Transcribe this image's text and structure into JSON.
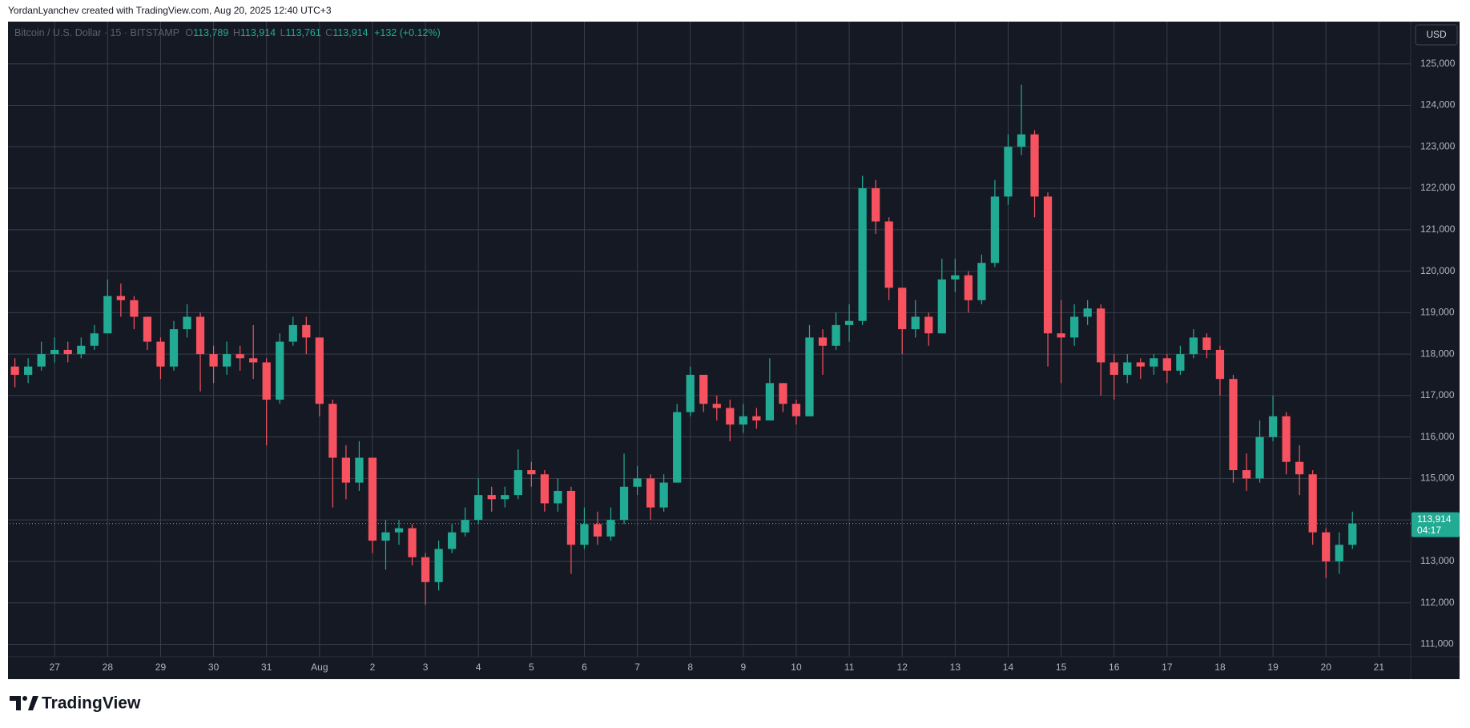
{
  "header": {
    "text": "YordanLyanchev created with TradingView.com, Aug 20, 2025 12:40 UTC+3"
  },
  "chart_data": {
    "type": "candlestick",
    "symbol": "Bitcoin / U.S. Dollar · 15 · BITSTAMP",
    "ohlc_legend": {
      "o_label": "O",
      "o": "113,789",
      "h_label": "H",
      "h": "113,914",
      "l_label": "L",
      "l": "113,761",
      "c_label": "C",
      "c": "113,914",
      "change": "+132 (+0.12%)"
    },
    "currency": "USD",
    "up_color": "#22ab94",
    "down_color": "#f7525f",
    "grid": true,
    "grid_color": "#3a3e4a",
    "x": [
      -0.75,
      -0.5,
      -0.25,
      0,
      0.25,
      0.5,
      0.75,
      1,
      1.25,
      1.5,
      1.75,
      2,
      2.25,
      2.5,
      2.75,
      3,
      3.25,
      3.5,
      3.75,
      4,
      4.25,
      4.5,
      4.75,
      5,
      5.25,
      5.5,
      5.75,
      6,
      6.25,
      6.5,
      6.75,
      7,
      7.25,
      7.5,
      7.75,
      8,
      8.25,
      8.5,
      8.75,
      9,
      9.25,
      9.5,
      9.75,
      10,
      10.25,
      10.5,
      10.75,
      11,
      11.25,
      11.5,
      11.75,
      12,
      12.25,
      12.5,
      12.75,
      13,
      13.25,
      13.5,
      13.75,
      14,
      14.25,
      14.5,
      14.75,
      15,
      15.25,
      15.5,
      15.75,
      16,
      16.25,
      16.5,
      16.75,
      17,
      17.25,
      17.5,
      17.75,
      18,
      18.25,
      18.5,
      18.75,
      19,
      19.25,
      19.5,
      19.75,
      20,
      20.25,
      20.5,
      20.75,
      21,
      21.25,
      21.5,
      21.75,
      22,
      22.25,
      22.5,
      22.75,
      23,
      23.25,
      23.5,
      23.75,
      24,
      24.25,
      24.5
    ],
    "series": [
      {
        "open": [
          117700,
          117500,
          117700,
          118000,
          118100,
          118000,
          118200,
          118500,
          119400,
          119300,
          118900,
          118300,
          117700,
          118600,
          118900,
          118000,
          117700,
          118000,
          117900,
          117800,
          116900,
          118300,
          118700,
          118400,
          116800,
          115500,
          114900,
          115500,
          113500,
          113700,
          113800,
          113100,
          112500,
          113300,
          113700,
          114000,
          114600,
          114500,
          114600,
          115200,
          115100,
          114400,
          114700,
          113400,
          113900,
          113600,
          114000,
          114800,
          115000,
          114300,
          114900,
          116600,
          117500,
          116800,
          116700,
          116300,
          116500,
          116400,
          117300,
          116800,
          116500,
          118400,
          118200,
          118700,
          118800,
          122000,
          121200,
          119600,
          118600,
          118900,
          118500,
          119800,
          119900,
          119300,
          120200,
          121800,
          123000,
          123300,
          121800,
          118500,
          118400,
          118900,
          119100,
          117800,
          117500,
          117800,
          117700,
          117900,
          117600,
          118000,
          118400,
          118100,
          117400,
          115200,
          115000,
          116000,
          116500,
          115400,
          115100,
          113700,
          113000,
          113400
        ],
        "high": [
          117900,
          117900,
          118300,
          118400,
          118300,
          118400,
          118700,
          119800,
          119700,
          119400,
          118900,
          118400,
          118800,
          119200,
          119000,
          118200,
          118300,
          118200,
          118700,
          117900,
          118500,
          118900,
          118900,
          118400,
          116900,
          115800,
          115900,
          115500,
          114000,
          114000,
          113900,
          113200,
          113500,
          113900,
          114300,
          115000,
          114800,
          114800,
          115700,
          115400,
          115200,
          115000,
          114800,
          114300,
          114200,
          114300,
          115600,
          115300,
          115100,
          115100,
          116800,
          117700,
          117500,
          117000,
          116900,
          116800,
          116700,
          117900,
          117300,
          116900,
          118700,
          118600,
          119000,
          119200,
          122300,
          122200,
          121300,
          119600,
          119300,
          119000,
          120300,
          120300,
          120000,
          120400,
          122200,
          123300,
          124500,
          123400,
          121900,
          119300,
          119200,
          119300,
          119200,
          118000,
          118000,
          117900,
          118000,
          118000,
          118200,
          118600,
          118500,
          118200,
          117500,
          115600,
          116400,
          117000,
          116600,
          115800,
          115200,
          113800,
          113700,
          114200
        ],
        "low": [
          117200,
          117300,
          117600,
          117800,
          117800,
          117900,
          118100,
          118500,
          118900,
          118600,
          118100,
          117400,
          117600,
          118400,
          117100,
          117300,
          117500,
          117600,
          117400,
          115800,
          116800,
          118200,
          118000,
          116500,
          114300,
          114500,
          114700,
          113200,
          112800,
          113400,
          112900,
          111950,
          112300,
          113200,
          113600,
          113900,
          114200,
          114300,
          114500,
          114800,
          114200,
          114200,
          112700,
          113300,
          113400,
          113500,
          113900,
          114600,
          114000,
          114200,
          114900,
          116500,
          116600,
          116400,
          115900,
          116100,
          116200,
          116400,
          116600,
          116300,
          116500,
          117500,
          118100,
          118300,
          118700,
          120900,
          119300,
          118000,
          118400,
          118200,
          118500,
          119500,
          119000,
          119200,
          120100,
          121600,
          122800,
          121300,
          117700,
          117300,
          118200,
          118700,
          117000,
          116900,
          117300,
          117400,
          117500,
          117300,
          117500,
          117900,
          117900,
          117000,
          114900,
          114700,
          114900,
          115900,
          115100,
          114600,
          113400,
          112600,
          112700,
          113300
        ],
        "close": [
          117500,
          117700,
          118000,
          118100,
          118000,
          118200,
          118500,
          119400,
          119300,
          118900,
          118300,
          117700,
          118600,
          118900,
          118000,
          117700,
          118000,
          117900,
          117800,
          116900,
          118300,
          118700,
          118400,
          116800,
          115500,
          114900,
          115500,
          113500,
          113700,
          113800,
          113100,
          112500,
          113300,
          113700,
          114000,
          114600,
          114500,
          114600,
          115200,
          115100,
          114400,
          114700,
          113400,
          113900,
          113600,
          114000,
          114800,
          115000,
          114300,
          114900,
          116600,
          117500,
          116800,
          116700,
          116300,
          116500,
          116400,
          117300,
          116800,
          116500,
          118400,
          118200,
          118700,
          118800,
          122000,
          121200,
          119600,
          118600,
          118900,
          118500,
          119800,
          119900,
          119300,
          120200,
          121800,
          123000,
          123300,
          121800,
          118500,
          118400,
          118900,
          119100,
          117800,
          117500,
          117800,
          117700,
          117900,
          117600,
          118000,
          118400,
          118100,
          117400,
          115200,
          115000,
          116000,
          116500,
          115400,
          115100,
          113700,
          113000,
          113400,
          113914
        ]
      }
    ],
    "xlim": [
      -0.85,
      25.6
    ],
    "ylim": [
      110700,
      126000
    ],
    "xticks": [
      {
        "value": 0,
        "label": "27"
      },
      {
        "value": 1,
        "label": "28"
      },
      {
        "value": 2,
        "label": "29"
      },
      {
        "value": 3,
        "label": "30"
      },
      {
        "value": 4,
        "label": "31"
      },
      {
        "value": 5,
        "label": "Aug"
      },
      {
        "value": 6,
        "label": "2"
      },
      {
        "value": 7,
        "label": "3"
      },
      {
        "value": 8,
        "label": "4"
      },
      {
        "value": 9,
        "label": "5"
      },
      {
        "value": 10,
        "label": "6"
      },
      {
        "value": 11,
        "label": "7"
      },
      {
        "value": 12,
        "label": "8"
      },
      {
        "value": 13,
        "label": "9"
      },
      {
        "value": 14,
        "label": "10"
      },
      {
        "value": 15,
        "label": "11"
      },
      {
        "value": 16,
        "label": "12"
      },
      {
        "value": 17,
        "label": "13"
      },
      {
        "value": 18,
        "label": "14"
      },
      {
        "value": 19,
        "label": "15"
      },
      {
        "value": 20,
        "label": "16"
      },
      {
        "value": 21,
        "label": "17"
      },
      {
        "value": 22,
        "label": "18"
      },
      {
        "value": 23,
        "label": "19"
      },
      {
        "value": 24,
        "label": "20"
      },
      {
        "value": 25,
        "label": "21"
      }
    ],
    "yticks": [
      {
        "value": 111000,
        "label": "111,000"
      },
      {
        "value": 112000,
        "label": "112,000"
      },
      {
        "value": 113000,
        "label": "113,000"
      },
      {
        "value": 114000,
        "label": "114,000"
      },
      {
        "value": 115000,
        "label": "115,000"
      },
      {
        "value": 116000,
        "label": "116,000"
      },
      {
        "value": 117000,
        "label": "117,000"
      },
      {
        "value": 118000,
        "label": "118,000"
      },
      {
        "value": 119000,
        "label": "119,000"
      },
      {
        "value": 120000,
        "label": "120,000"
      },
      {
        "value": 121000,
        "label": "121,000"
      },
      {
        "value": 122000,
        "label": "122,000"
      },
      {
        "value": 123000,
        "label": "123,000"
      },
      {
        "value": 124000,
        "label": "124,000"
      },
      {
        "value": 125000,
        "label": "125,000"
      }
    ],
    "last_price": {
      "value": 113914,
      "label": "113,914"
    },
    "countdown": "04:17"
  },
  "footer": {
    "logo": "TradingView"
  }
}
